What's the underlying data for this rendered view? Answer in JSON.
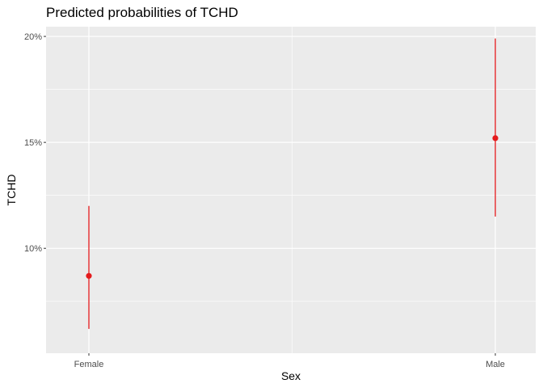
{
  "chart_data": {
    "type": "scatter",
    "title": "Predicted probabilities of TCHD",
    "xlabel": "Sex",
    "ylabel": "TCHD",
    "categories": [
      "Female",
      "Male"
    ],
    "series": [
      {
        "values": [
          0.087,
          0.152
        ],
        "ci_low": [
          0.062,
          0.115
        ],
        "ci_high": [
          0.12,
          0.199
        ]
      }
    ],
    "yticks": [
      0.1,
      0.15,
      0.2
    ],
    "ytick_labels": [
      "10%",
      "15%",
      "20%"
    ],
    "ylim": [
      0.0505,
      0.2046
    ],
    "grid": true,
    "legend": "none",
    "colors": {
      "panel": "#ebebeb",
      "grid_major": "#ffffff",
      "point": "#e41a1c",
      "tick": "#333333"
    }
  }
}
